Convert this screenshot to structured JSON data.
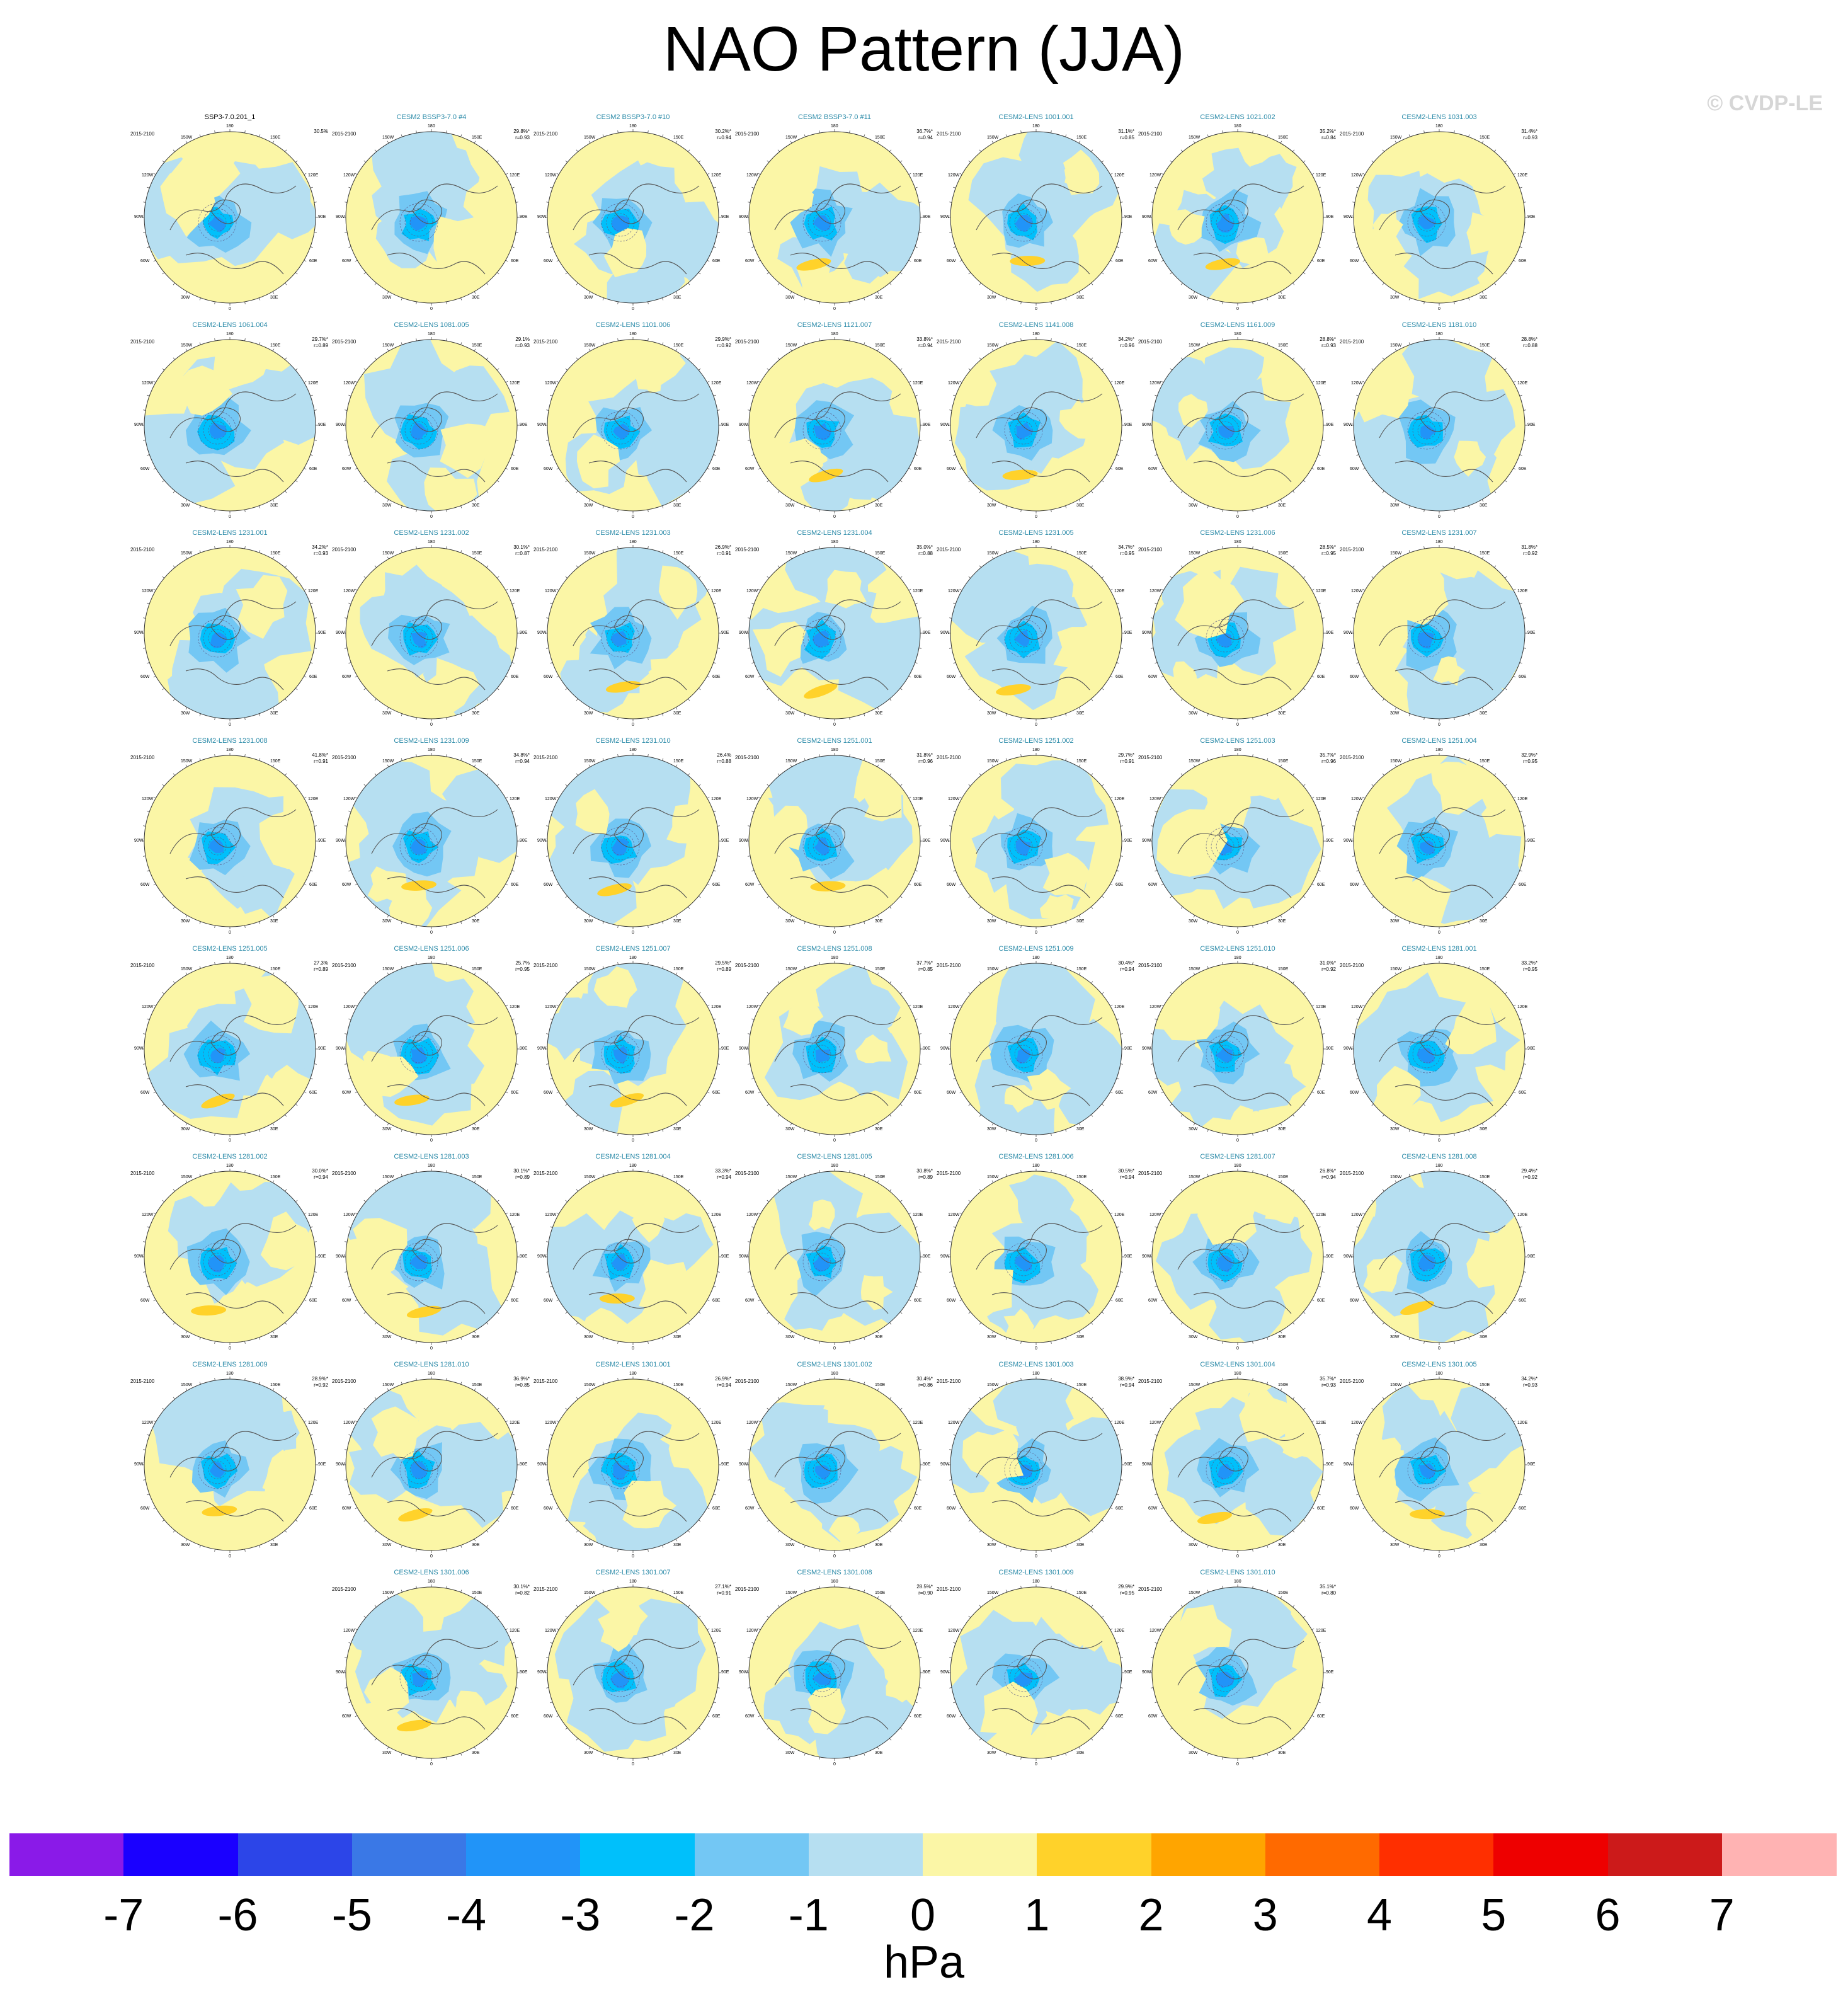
{
  "title": "NAO Pattern (JJA)",
  "credit": "© CVDP-LE",
  "units": "hPa",
  "period": "2015-2100",
  "lon_labels": {
    "top": "180",
    "bottom": "0",
    "ul": "150W",
    "ur": "150E",
    "ml": "120W",
    "mr": "120E",
    "l": "90W",
    "r": "90E",
    "ll": "60W",
    "lr": "60E",
    "bl": "30W",
    "br": "30E"
  },
  "colors": {
    "levels": [
      "#8a1ae8",
      "#1a00ff",
      "#2c45e8",
      "#3a78e6",
      "#2194f8",
      "#00c0fb",
      "#73c7f4",
      "#b6dff1",
      "#fbf6a6",
      "#ffd22a",
      "#ffa500",
      "#ff6a00",
      "#ff2f00",
      "#ee0000",
      "#cc1a1a",
      "#ffb3b3"
    ],
    "ocean": "#b6dff1",
    "land_line": "#555555"
  },
  "colorbar": {
    "ticks": [
      "-7",
      "-6",
      "-5",
      "-4",
      "-3",
      "-2",
      "-1",
      "0",
      "1",
      "2",
      "3",
      "4",
      "5",
      "6",
      "7"
    ]
  },
  "panels": [
    {
      "title": "SSP3-7.0.201_1",
      "pct": "30.5%",
      "r": "",
      "obs": true
    },
    {
      "title": "CESM2 BSSP3-7.0 #4",
      "pct": "29.8%*",
      "r": "r=0.93"
    },
    {
      "title": "CESM2 BSSP3-7.0 #10",
      "pct": "30.2%*",
      "r": "r=0.94"
    },
    {
      "title": "CESM2 BSSP3-7.0 #11",
      "pct": "36.7%*",
      "r": "r=0.94"
    },
    {
      "title": "CESM2-LENS 1001.001",
      "pct": "31.1%*",
      "r": "r=0.85"
    },
    {
      "title": "CESM2-LENS 1021.002",
      "pct": "35.2%*",
      "r": "r=0.84"
    },
    {
      "title": "CESM2-LENS 1031.003",
      "pct": "31.4%*",
      "r": "r=0.93"
    },
    {
      "title": "CESM2-LENS 1061.004",
      "pct": "29.7%*",
      "r": "r=0.89"
    },
    {
      "title": "CESM2-LENS 1081.005",
      "pct": "29.1%",
      "r": "r=0.93"
    },
    {
      "title": "CESM2-LENS 1101.006",
      "pct": "29.9%*",
      "r": "r=0.92"
    },
    {
      "title": "CESM2-LENS 1121.007",
      "pct": "33.8%*",
      "r": "r=0.94"
    },
    {
      "title": "CESM2-LENS 1141.008",
      "pct": "34.2%*",
      "r": "r=0.96"
    },
    {
      "title": "CESM2-LENS 1161.009",
      "pct": "28.8%*",
      "r": "r=0.93"
    },
    {
      "title": "CESM2-LENS 1181.010",
      "pct": "28.8%*",
      "r": "r=0.88"
    },
    {
      "title": "CESM2-LENS 1231.001",
      "pct": "34.2%*",
      "r": "r=0.93"
    },
    {
      "title": "CESM2-LENS 1231.002",
      "pct": "30.1%*",
      "r": "r=0.87"
    },
    {
      "title": "CESM2-LENS 1231.003",
      "pct": "26.9%*",
      "r": "r=0.91"
    },
    {
      "title": "CESM2-LENS 1231.004",
      "pct": "35.0%*",
      "r": "r=0.88"
    },
    {
      "title": "CESM2-LENS 1231.005",
      "pct": "34.7%*",
      "r": "r=0.95"
    },
    {
      "title": "CESM2-LENS 1231.006",
      "pct": "28.5%*",
      "r": "r=0.95"
    },
    {
      "title": "CESM2-LENS 1231.007",
      "pct": "31.8%*",
      "r": "r=0.92"
    },
    {
      "title": "CESM2-LENS 1231.008",
      "pct": "41.8%*",
      "r": "r=0.91"
    },
    {
      "title": "CESM2-LENS 1231.009",
      "pct": "34.8%*",
      "r": "r=0.94"
    },
    {
      "title": "CESM2-LENS 1231.010",
      "pct": "26.4%",
      "r": "r=0.88"
    },
    {
      "title": "CESM2-LENS 1251.001",
      "pct": "31.8%*",
      "r": "r=0.96"
    },
    {
      "title": "CESM2-LENS 1251.002",
      "pct": "29.7%*",
      "r": "r=0.91"
    },
    {
      "title": "CESM2-LENS 1251.003",
      "pct": "35.7%*",
      "r": "r=0.96"
    },
    {
      "title": "CESM2-LENS 1251.004",
      "pct": "32.9%*",
      "r": "r=0.95"
    },
    {
      "title": "CESM2-LENS 1251.005",
      "pct": "27.3%",
      "r": "r=0.89"
    },
    {
      "title": "CESM2-LENS 1251.006",
      "pct": "25.7%",
      "r": "r=0.95"
    },
    {
      "title": "CESM2-LENS 1251.007",
      "pct": "29.5%*",
      "r": "r=0.89"
    },
    {
      "title": "CESM2-LENS 1251.008",
      "pct": "37.7%*",
      "r": "r=0.85"
    },
    {
      "title": "CESM2-LENS 1251.009",
      "pct": "30.4%*",
      "r": "r=0.94"
    },
    {
      "title": "CESM2-LENS 1251.010",
      "pct": "31.0%*",
      "r": "r=0.92"
    },
    {
      "title": "CESM2-LENS 1281.001",
      "pct": "33.2%*",
      "r": "r=0.95"
    },
    {
      "title": "CESM2-LENS 1281.002",
      "pct": "30.0%*",
      "r": "r=0.94"
    },
    {
      "title": "CESM2-LENS 1281.003",
      "pct": "30.1%*",
      "r": "r=0.89"
    },
    {
      "title": "CESM2-LENS 1281.004",
      "pct": "33.3%*",
      "r": "r=0.94"
    },
    {
      "title": "CESM2-LENS 1281.005",
      "pct": "30.8%*",
      "r": "r=0.89"
    },
    {
      "title": "CESM2-LENS 1281.006",
      "pct": "30.5%*",
      "r": "r=0.94"
    },
    {
      "title": "CESM2-LENS 1281.007",
      "pct": "26.8%*",
      "r": "r=0.94"
    },
    {
      "title": "CESM2-LENS 1281.008",
      "pct": "29.4%*",
      "r": "r=0.92"
    },
    {
      "title": "CESM2-LENS 1281.009",
      "pct": "28.9%*",
      "r": "r=0.92"
    },
    {
      "title": "CESM2-LENS 1281.010",
      "pct": "36.9%*",
      "r": "r=0.85"
    },
    {
      "title": "CESM2-LENS 1301.001",
      "pct": "26.9%*",
      "r": "r=0.94"
    },
    {
      "title": "CESM2-LENS 1301.002",
      "pct": "30.4%*",
      "r": "r=0.86"
    },
    {
      "title": "CESM2-LENS 1301.003",
      "pct": "38.9%*",
      "r": "r=0.94"
    },
    {
      "title": "CESM2-LENS 1301.004",
      "pct": "35.7%*",
      "r": "r=0.93"
    },
    {
      "title": "CESM2-LENS 1301.005",
      "pct": "34.2%*",
      "r": "r=0.93"
    },
    {
      "title": "CESM2-LENS 1301.006",
      "pct": "30.1%*",
      "r": "r=0.82"
    },
    {
      "title": "CESM2-LENS 1301.007",
      "pct": "27.1%*",
      "r": "r=0.91"
    },
    {
      "title": "CESM2-LENS 1301.008",
      "pct": "28.5%*",
      "r": "r=0.90"
    },
    {
      "title": "CESM2-LENS 1301.009",
      "pct": "29.9%*",
      "r": "r=0.95"
    },
    {
      "title": "CESM2-LENS 1301.010",
      "pct": "35.1%*",
      "r": "r=0.80"
    }
  ]
}
